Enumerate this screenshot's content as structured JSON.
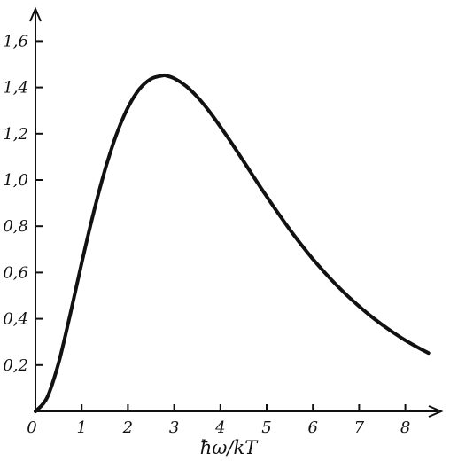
{
  "chart_data": {
    "type": "line",
    "title": "",
    "xlabel": "ħω/kT",
    "ylabel": "",
    "xlim": [
      0,
      8.7
    ],
    "ylim": [
      0,
      1.8
    ],
    "xticks": [
      0,
      1,
      2,
      3,
      4,
      5,
      6,
      7,
      8
    ],
    "xtick_labels": [
      "0",
      "1",
      "2",
      "3",
      "4",
      "5",
      "6",
      "7",
      "8"
    ],
    "yticks": [
      0.2,
      0.4,
      0.6,
      0.8,
      1.0,
      1.2,
      1.4,
      1.6
    ],
    "ytick_labels": [
      "0,2",
      "0,4",
      "0,6",
      "0,8",
      "1,0",
      "1,2",
      "1,4",
      "1,6"
    ],
    "grid": false,
    "series": [
      {
        "x": [
          0,
          0.25,
          0.5,
          0.75,
          1.0,
          1.25,
          1.5,
          1.75,
          2.0,
          2.25,
          2.5,
          2.75,
          2.82,
          3.0,
          3.25,
          3.5,
          3.75,
          4.0,
          4.25,
          4.5,
          4.75,
          5.0,
          5.25,
          5.5,
          5.75,
          6.0,
          6.25,
          6.5,
          6.75,
          7.0,
          7.25,
          7.5,
          7.75,
          8.0,
          8.25,
          8.5
        ],
        "y": [
          0.0,
          0.058,
          0.208,
          0.418,
          0.641,
          0.853,
          1.041,
          1.196,
          1.313,
          1.393,
          1.437,
          1.451,
          1.451,
          1.439,
          1.407,
          1.359,
          1.299,
          1.23,
          1.157,
          1.081,
          1.004,
          0.929,
          0.856,
          0.786,
          0.72,
          0.658,
          0.601,
          0.548,
          0.499,
          0.454,
          0.412,
          0.374,
          0.339,
          0.307,
          0.278,
          0.252
        ]
      }
    ]
  }
}
